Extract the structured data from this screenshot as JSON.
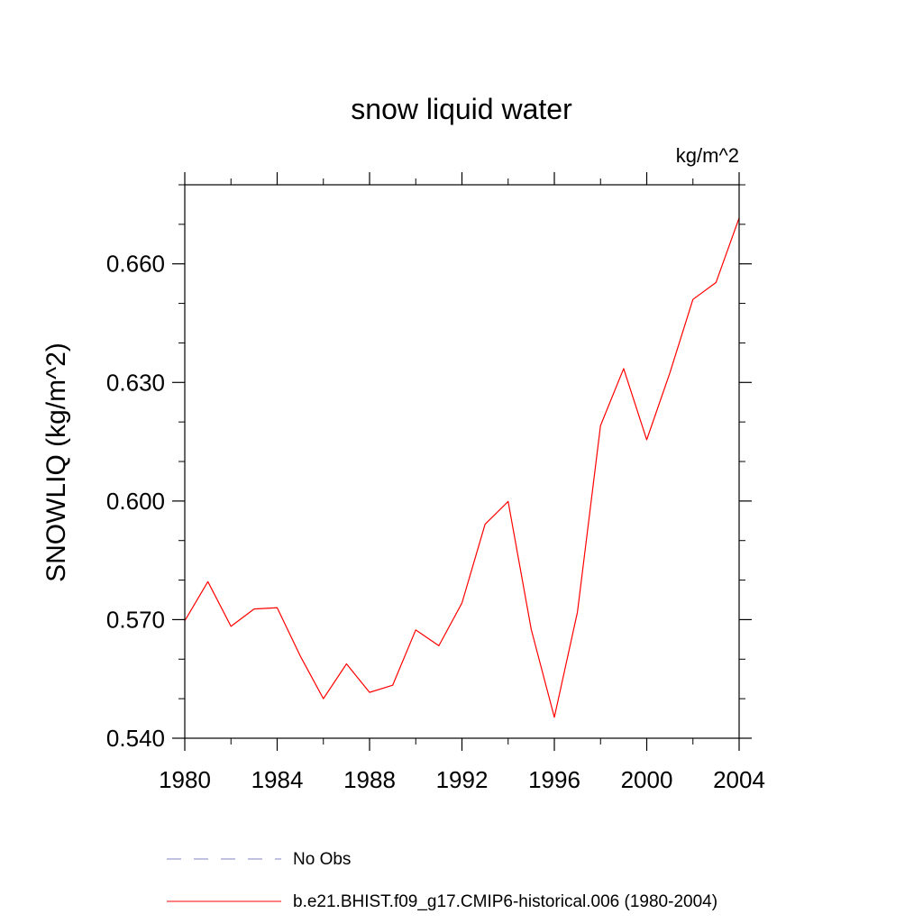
{
  "chart_data": {
    "type": "line",
    "title": "snow liquid water",
    "units_label": "kg/m^2",
    "ylabel": "SNOWLIQ  (kg/m^2)",
    "xlabel": "",
    "xlim": [
      1980,
      2004
    ],
    "ylim": [
      0.54,
      0.68
    ],
    "x_ticks": [
      1980,
      1984,
      1988,
      1992,
      1996,
      2000,
      2004
    ],
    "x_tick_labels": [
      "1980",
      "1984",
      "1988",
      "1992",
      "1996",
      "2000",
      "2004"
    ],
    "x_minor_step": 2,
    "y_ticks": [
      0.54,
      0.57,
      0.6,
      0.63,
      0.66
    ],
    "y_tick_labels": [
      "0.540",
      "0.570",
      "0.600",
      "0.630",
      "0.660"
    ],
    "y_minor_step": 0.01,
    "grid": false,
    "legend_position": "bottom",
    "series": [
      {
        "name": "b.e21.BHIST.f09_g17.CMIP6-historical.006 (1980-2004)",
        "color": "#ff0000",
        "style": "solid",
        "x": [
          1980,
          1981,
          1982,
          1983,
          1984,
          1985,
          1986,
          1987,
          1988,
          1989,
          1990,
          1991,
          1992,
          1993,
          1994,
          1995,
          1996,
          1997,
          1998,
          1999,
          2000,
          2001,
          2002,
          2003,
          2004
        ],
        "values": [
          0.5697,
          0.5796,
          0.5683,
          0.5727,
          0.573,
          0.5608,
          0.55,
          0.5588,
          0.5516,
          0.5534,
          0.5674,
          0.5634,
          0.5742,
          0.5941,
          0.5999,
          0.5675,
          0.5453,
          0.5719,
          0.6191,
          0.6335,
          0.6155,
          0.6324,
          0.651,
          0.6553,
          0.6716
        ]
      }
    ],
    "legend": [
      {
        "label": "No Obs",
        "color": "#8080c0",
        "style": "dashed"
      },
      {
        "label": "b.e21.BHIST.f09_g17.CMIP6-historical.006 (1980-2004)",
        "color": "#ff0000",
        "style": "solid"
      }
    ]
  }
}
